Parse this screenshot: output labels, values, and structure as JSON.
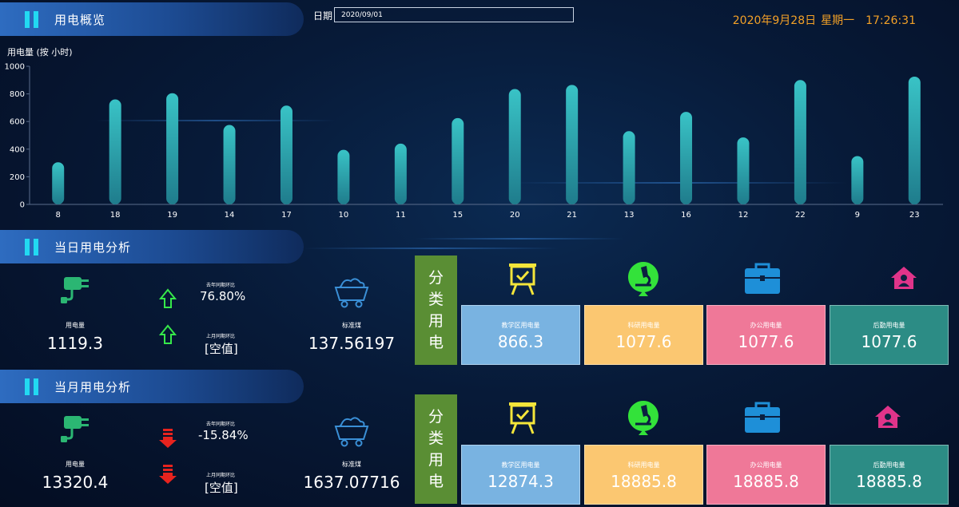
{
  "header": {
    "overview_title": "用电概览",
    "date_label": "日期",
    "date_value": "2020/09/01",
    "date": "2020年9月28日",
    "weekday": "星期一",
    "time": "17:26:31"
  },
  "chart_data": {
    "type": "bar",
    "ylabel": "用电量 (按 小时)",
    "ylim": [
      0,
      1000
    ],
    "yticks": [
      0,
      200,
      400,
      600,
      800,
      1000
    ],
    "categories": [
      "8",
      "18",
      "19",
      "14",
      "17",
      "10",
      "11",
      "15",
      "20",
      "21",
      "13",
      "16",
      "12",
      "22",
      "9",
      "23"
    ],
    "values": [
      305,
      760,
      805,
      575,
      715,
      395,
      440,
      625,
      835,
      865,
      530,
      670,
      485,
      900,
      350,
      925
    ],
    "bar_color": "#39c3c6"
  },
  "daily": {
    "title": "当日用电分析",
    "usage_label": "用电量",
    "usage_value": "1119.3",
    "yoy_label": "去年同期环比",
    "yoy_value": "76.80%",
    "mom_label": "上月同期环比",
    "mom_value": "[空值]",
    "coal_label": "标准煤",
    "coal_value": "137.56197",
    "category_title_chars": [
      "分",
      "类",
      "用",
      "电"
    ],
    "categories": [
      {
        "label": "教学区用电量",
        "value": "866.3",
        "icon": "easel-icon"
      },
      {
        "label": "科研用电量",
        "value": "1077.6",
        "icon": "microscope-icon"
      },
      {
        "label": "办公用电量",
        "value": "1077.6",
        "icon": "briefcase-icon"
      },
      {
        "label": "后勤用电量",
        "value": "1077.6",
        "icon": "home-user-icon"
      }
    ]
  },
  "monthly": {
    "title": "当月用电分析",
    "usage_label": "用电量",
    "usage_value": "13320.4",
    "yoy_label": "去年同期环比",
    "yoy_value": "-15.84%",
    "mom_label": "上月同期环比",
    "mom_value": "[空值]",
    "coal_label": "标准煤",
    "coal_value": "1637.07716",
    "category_title_chars": [
      "分",
      "类",
      "用",
      "电"
    ],
    "categories": [
      {
        "label": "教学区用电量",
        "value": "12874.3",
        "icon": "easel-icon"
      },
      {
        "label": "科研用电量",
        "value": "18885.8",
        "icon": "microscope-icon"
      },
      {
        "label": "办公用电量",
        "value": "18885.8",
        "icon": "briefcase-icon"
      },
      {
        "label": "后勤用电量",
        "value": "18885.8",
        "icon": "home-user-icon"
      }
    ]
  },
  "colors": {
    "accent_cyan": "#22d9f2",
    "clock_orange": "#f3a127",
    "up_green": "#36e84a",
    "down_red": "#e8231e",
    "plug_green": "#2bb673",
    "coal_blue": "#3a8fd6",
    "easel_yellow": "#f4e53a",
    "microscope_green": "#33e23a",
    "briefcase_blue": "#1e8fd8",
    "home_pink": "#e0348a",
    "category_green": "#5a8e34"
  }
}
